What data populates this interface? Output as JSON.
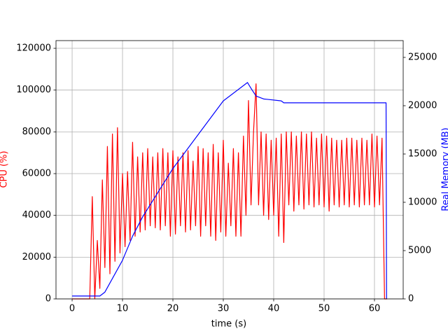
{
  "chart_data": {
    "type": "line",
    "xlabel": "time (s)",
    "ylabel": "CPU (%)",
    "y2label": "Real Memory (MB)",
    "xlim": [
      -3.2,
      65.7
    ],
    "xticks": [
      0,
      10,
      20,
      30,
      40,
      50,
      60
    ],
    "ylim": [
      0,
      123700
    ],
    "yticks": [
      0,
      20000,
      40000,
      60000,
      80000,
      100000,
      120000
    ],
    "y2lim": [
      0,
      26740
    ],
    "y2ticks": [
      0,
      5000,
      10000,
      15000,
      20000,
      25000
    ],
    "grid": true,
    "series": [
      {
        "name": "CPU (%)",
        "color": "#ff0000",
        "x": [
          0,
          3.5,
          4,
          4.5,
          5,
          5.5,
          6,
          6.5,
          7,
          7.5,
          8,
          8.5,
          9,
          9.5,
          10,
          10.5,
          11,
          11.5,
          12,
          12.5,
          13,
          13.5,
          14,
          14.5,
          15,
          15.5,
          16,
          16.5,
          17,
          17.5,
          18,
          18.5,
          19,
          19.5,
          20,
          20.5,
          21,
          21.5,
          22,
          22.5,
          23,
          23.5,
          24,
          24.5,
          25,
          25.5,
          26,
          26.5,
          27,
          27.5,
          28,
          28.5,
          29,
          29.5,
          30,
          30.5,
          31,
          31.5,
          32,
          32.5,
          33,
          33.5,
          34,
          34.5,
          35,
          35.5,
          36,
          36.5,
          37,
          37.5,
          38,
          38.5,
          39,
          39.5,
          40,
          40.5,
          41,
          41.5,
          42,
          42.5,
          43,
          43.5,
          44,
          44.5,
          45,
          45.5,
          46,
          46.5,
          47,
          47.5,
          48,
          48.5,
          49,
          49.5,
          50,
          50.5,
          51,
          51.5,
          52,
          52.5,
          53,
          53.5,
          54,
          54.5,
          55,
          55.5,
          56,
          56.5,
          57,
          57.5,
          58,
          58.5,
          59,
          59.5,
          60,
          60.5,
          61,
          61.5,
          62,
          62.5
        ],
        "values": [
          0,
          0,
          49000,
          0,
          28000,
          5000,
          57000,
          15000,
          73000,
          12000,
          79000,
          18000,
          82000,
          22000,
          60000,
          25000,
          61000,
          28000,
          75000,
          30000,
          68000,
          32000,
          70000,
          33000,
          72000,
          35000,
          68000,
          34000,
          70000,
          33000,
          72000,
          35000,
          70000,
          30000,
          71000,
          31000,
          68000,
          35000,
          70000,
          32000,
          71000,
          33000,
          66000,
          35000,
          73000,
          30000,
          72000,
          35000,
          70000,
          30000,
          74000,
          28000,
          70000,
          32000,
          76000,
          30000,
          65000,
          35000,
          72000,
          30000,
          70000,
          30000,
          78000,
          40000,
          95000,
          45000,
          80000,
          103000,
          45000,
          80000,
          40000,
          79000,
          38000,
          76000,
          40000,
          77000,
          30000,
          79000,
          27000,
          80000,
          45000,
          80000,
          42000,
          78000,
          45000,
          80000,
          43000,
          79000,
          45000,
          80000,
          44000,
          77000,
          45000,
          79000,
          44000,
          78000,
          42000,
          77000,
          45000,
          76000,
          44000,
          76000,
          45000,
          77000,
          44000,
          77000,
          45000,
          76000,
          44000,
          77000,
          45000,
          76000,
          45000,
          79000,
          44000,
          78000,
          45000,
          77000,
          0,
          0
        ]
      },
      {
        "name": "Real Memory (MB)",
        "color": "#0000ff",
        "axis": "y2",
        "x": [
          0,
          5.5,
          6.5,
          10,
          12,
          14,
          17,
          20,
          25,
          30,
          34.8,
          35.5,
          36.5,
          38,
          41.5,
          42,
          62.3,
          62.4
        ],
        "values": [
          300,
          300,
          700,
          4000,
          6500,
          8500,
          11000,
          13500,
          17000,
          20500,
          22400,
          21800,
          21000,
          20700,
          20500,
          20300,
          20300,
          0
        ]
      }
    ]
  }
}
